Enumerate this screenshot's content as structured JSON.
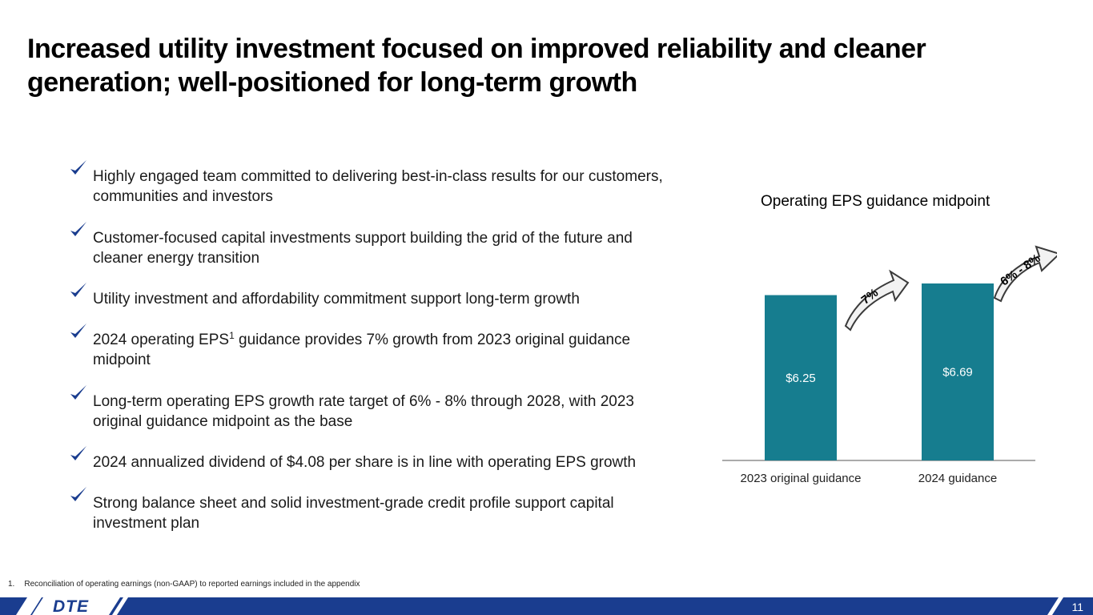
{
  "slide": {
    "title": "Increased utility investment focused on improved reliability and cleaner generation; well-positioned for long-term growth",
    "page_number": "11",
    "logo_text": "DTE"
  },
  "bullets": [
    {
      "text": "Highly engaged team committed to delivering best-in-class results for our customers, communities and investors"
    },
    {
      "text": "Customer-focused capital investments support building the grid of the future and cleaner energy transition"
    },
    {
      "text": "Utility investment and affordability commitment support long-term growth"
    },
    {
      "text_before": "2024 operating EPS",
      "superscript": "1",
      "text_after": " guidance provides 7% growth from 2023 original guidance midpoint"
    },
    {
      "text": "Long-term operating EPS growth rate target of 6% - 8% through 2028, with 2023 original guidance midpoint as the base"
    },
    {
      "text": "2024 annualized dividend of $4.08 per share is in line with operating EPS growth"
    },
    {
      "text": "Strong balance sheet and solid investment-grade credit profile support capital investment plan"
    }
  ],
  "footnote": {
    "number": "1.",
    "text": "Reconciliation of operating earnings (non-GAAP) to reported earnings included in the appendix"
  },
  "colors": {
    "bar": "#167d8f",
    "checkmark": "#1a3d8f",
    "footer_bar": "#1a3d8f",
    "arrow_dark": "#3a3a3a",
    "arrow_light": "#f2f2f2"
  },
  "chart_data": {
    "type": "bar",
    "title": "Operating EPS guidance midpoint",
    "categories": [
      "2023 original guidance",
      "2024 guidance"
    ],
    "values": [
      6.25,
      6.69
    ],
    "value_labels": [
      "$6.25",
      "$6.69"
    ],
    "xlabel": "",
    "ylabel": "",
    "ylim": [
      0,
      6.69
    ],
    "grid": false,
    "annotations": [
      {
        "text": "7%",
        "between": [
          "2023 original guidance",
          "2024 guidance"
        ]
      },
      {
        "text": "6% - 8%",
        "after": "2024 guidance"
      }
    ]
  }
}
